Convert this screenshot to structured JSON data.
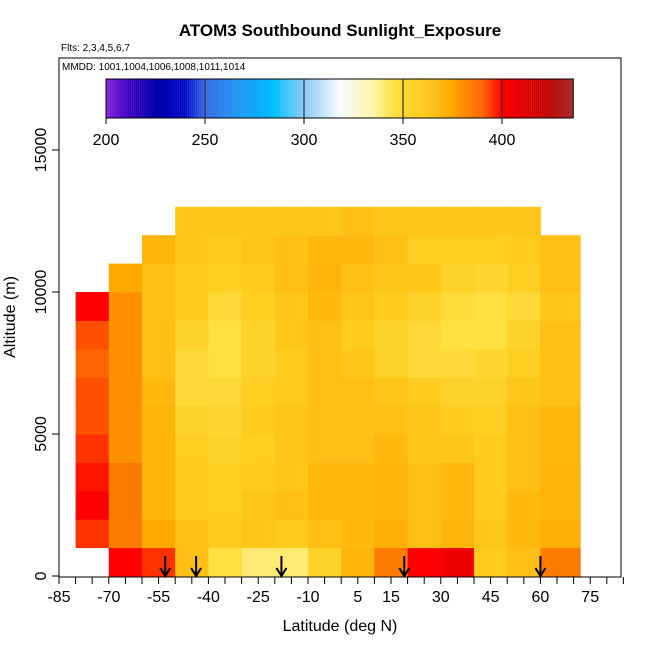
{
  "chart_data": {
    "type": "heatmap",
    "title": "ATOM3 Southbound Sunlight_Exposure",
    "subtitle": "Flts: 2,3,4,5,6,7",
    "annotation": "MMDD: 1001,1004,1006,1008,1011,1014",
    "xlabel": "Latitude (deg N)",
    "ylabel": "Altitude (m)",
    "xlim": [
      -85,
      85
    ],
    "ylim": [
      0,
      18200
    ],
    "x_tick_labels": [
      "-85",
      "-70",
      "-55",
      "-40",
      "-25",
      "-10",
      "5",
      "15",
      "30",
      "45",
      "60",
      "75"
    ],
    "x_tick_values": [
      -85,
      -70,
      -55,
      -40,
      -25,
      -10,
      5,
      15,
      30,
      45,
      60,
      75
    ],
    "x_minor_tick_step": 5,
    "y_tick_labels": [
      "0",
      "5000",
      "10000",
      "15000"
    ],
    "y_tick_values": [
      0,
      5000,
      10000,
      15000
    ],
    "grid": false,
    "colorbar": {
      "placement": "top",
      "range": [
        200,
        436
      ],
      "tick_labels": [
        "200",
        "250",
        "300",
        "350",
        "400"
      ],
      "tick_values": [
        200,
        250,
        300,
        350,
        400
      ],
      "color_stops": [
        [
          200,
          "#8a2be2"
        ],
        [
          212,
          "#3a00c0"
        ],
        [
          225,
          "#0000a8"
        ],
        [
          240,
          "#0008c8"
        ],
        [
          250,
          "#3a6ee8"
        ],
        [
          285,
          "#00bfff"
        ],
        [
          300,
          "#8ccbf6"
        ],
        [
          318,
          "#f4fbff"
        ],
        [
          335,
          "#fff6a8"
        ],
        [
          345,
          "#ffe040"
        ],
        [
          360,
          "#ffcb1e"
        ],
        [
          375,
          "#ffa800"
        ],
        [
          390,
          "#ff6400"
        ],
        [
          400,
          "#ff0000"
        ],
        [
          420,
          "#c80000"
        ],
        [
          436,
          "#a52a2a"
        ]
      ]
    },
    "lat_bin_edges": [
      -80,
      -70,
      -60,
      -50,
      -40,
      -30,
      -20,
      -10,
      0,
      10,
      20,
      30,
      40,
      50,
      60,
      72
    ],
    "alt_bin_edges": [
      0,
      1000,
      2000,
      3000,
      4000,
      5000,
      6000,
      7000,
      8000,
      9000,
      10000,
      11000,
      12000,
      13000
    ],
    "values": [
      [
        null,
        395,
        400,
        398,
        395,
        392,
        392,
        390,
        392,
        400,
        null,
        null,
        null
      ],
      [
        400,
        385,
        385,
        385,
        380,
        380,
        380,
        380,
        380,
        380,
        375,
        null,
        null
      ],
      [
        395,
        375,
        370,
        370,
        370,
        370,
        368,
        365,
        365,
        365,
        365,
        370,
        null
      ],
      [
        365,
        365,
        360,
        360,
        358,
        355,
        350,
        350,
        355,
        360,
        360,
        362,
        362
      ],
      [
        345,
        360,
        358,
        358,
        355,
        352,
        350,
        345,
        345,
        350,
        358,
        360,
        362
      ],
      [
        340,
        362,
        362,
        360,
        358,
        360,
        358,
        355,
        355,
        358,
        360,
        362,
        362
      ],
      [
        340,
        360,
        365,
        362,
        362,
        362,
        360,
        360,
        362,
        362,
        365,
        365,
        362
      ],
      [
        355,
        365,
        368,
        368,
        365,
        365,
        365,
        365,
        365,
        368,
        370,
        368,
        362
      ],
      [
        370,
        368,
        368,
        368,
        365,
        365,
        365,
        362,
        360,
        362,
        365,
        368,
        365
      ],
      [
        385,
        372,
        370,
        370,
        368,
        365,
        362,
        355,
        355,
        360,
        362,
        365,
        362
      ],
      [
        400,
        365,
        365,
        365,
        362,
        362,
        360,
        350,
        350,
        355,
        362,
        358,
        362
      ],
      [
        405,
        370,
        368,
        368,
        362,
        360,
        355,
        350,
        345,
        348,
        355,
        358,
        362
      ],
      [
        360,
        362,
        360,
        360,
        360,
        358,
        355,
        352,
        345,
        345,
        352,
        358,
        362
      ],
      [
        365,
        368,
        368,
        365,
        365,
        365,
        362,
        358,
        355,
        350,
        358,
        360,
        362
      ],
      [
        385,
        372,
        370,
        370,
        368,
        368,
        365,
        365,
        365,
        362,
        365,
        365,
        null
      ]
    ],
    "arrow_markers_lat": [
      -53,
      -43.7,
      -18,
      19,
      60
    ]
  }
}
